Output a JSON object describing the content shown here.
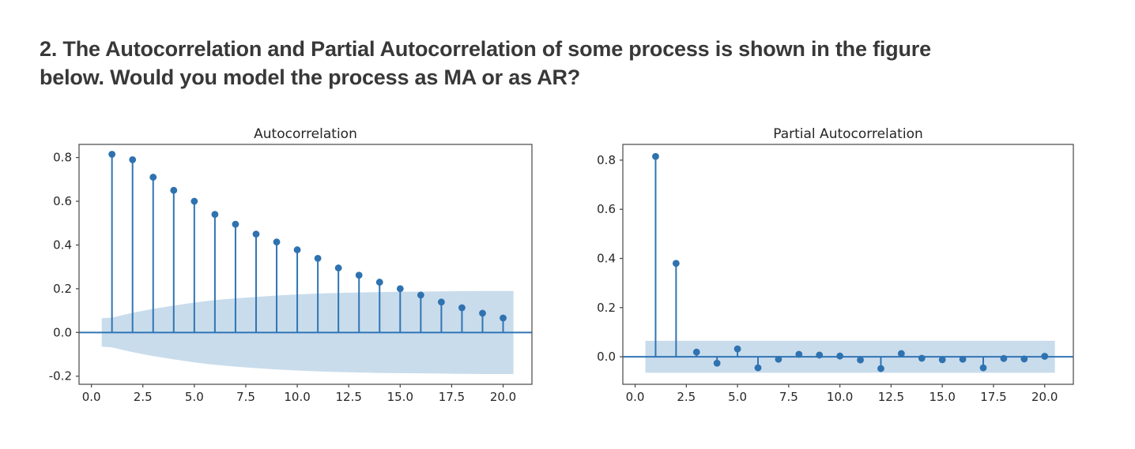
{
  "heading": {
    "lines": [
      "2. The Autocorrelation and Partial Autocorrelation of some process is shown in the figure",
      "below. Would you model the process as MA or as AR?"
    ]
  },
  "colors": {
    "stem": "#3075b4",
    "marker": "#2f72b0",
    "zero_line": "#3075b4",
    "band": "#c9dcec",
    "spine": "#555555",
    "tick": "#3f3f3f",
    "text": "#262626",
    "heading": "#383838"
  },
  "chart_data": [
    {
      "type": "stem",
      "title": "Autocorrelation",
      "xlabel": "",
      "ylabel": "",
      "legend": "none",
      "grid": false,
      "x": [
        1,
        2,
        3,
        4,
        5,
        6,
        7,
        8,
        9,
        10,
        11,
        12,
        13,
        14,
        15,
        16,
        17,
        18,
        19,
        20
      ],
      "values": [
        0.815,
        0.79,
        0.71,
        0.65,
        0.6,
        0.54,
        0.495,
        0.45,
        0.414,
        0.378,
        0.339,
        0.295,
        0.262,
        0.23,
        0.2,
        0.171,
        0.139,
        0.113,
        0.088,
        0.066
      ],
      "conf_band": {
        "symmetric_about_zero": true,
        "x": [
          0.5,
          1,
          2,
          3,
          4,
          5,
          6,
          7,
          8,
          9,
          10,
          11,
          12,
          13,
          14,
          15,
          16,
          17,
          18,
          19,
          20,
          20.5
        ],
        "upper": [
          0.065,
          0.068,
          0.09,
          0.108,
          0.123,
          0.137,
          0.148,
          0.156,
          0.163,
          0.169,
          0.174,
          0.178,
          0.181,
          0.183,
          0.185,
          0.186,
          0.187,
          0.188,
          0.189,
          0.19,
          0.19,
          0.19
        ]
      },
      "xlim": [
        -0.6,
        21.4
      ],
      "ylim": [
        -0.237,
        0.86
      ],
      "xticks": [
        0,
        2.5,
        5,
        7.5,
        10,
        12.5,
        15,
        17.5,
        20
      ],
      "xtick_labels": [
        "0.0",
        "2.5",
        "5.0",
        "7.5",
        "10.0",
        "12.5",
        "15.0",
        "17.5",
        "20.0"
      ],
      "yticks": [
        -0.2,
        0,
        0.2,
        0.4,
        0.6,
        0.8
      ],
      "ytick_labels": [
        "-0.2",
        "0.0",
        "0.2",
        "0.4",
        "0.6",
        "0.8"
      ]
    },
    {
      "type": "stem",
      "title": "Partial Autocorrelation",
      "xlabel": "",
      "ylabel": "",
      "legend": "none",
      "grid": false,
      "x": [
        1,
        2,
        3,
        4,
        5,
        6,
        7,
        8,
        9,
        10,
        11,
        12,
        13,
        14,
        15,
        16,
        17,
        18,
        19,
        20
      ],
      "values": [
        0.815,
        0.38,
        0.019,
        -0.026,
        0.032,
        -0.045,
        -0.01,
        0.01,
        0.007,
        0.003,
        -0.013,
        -0.048,
        0.013,
        -0.006,
        -0.012,
        -0.01,
        -0.045,
        -0.007,
        -0.009,
        0.002
      ],
      "conf_band": {
        "symmetric_about_zero": true,
        "x": [
          0.5,
          20.5
        ],
        "upper": [
          0.065,
          0.065
        ]
      },
      "xlim": [
        -0.6,
        21.4
      ],
      "ylim": [
        -0.112,
        0.864
      ],
      "xticks": [
        0,
        2.5,
        5,
        7.5,
        10,
        12.5,
        15,
        17.5,
        20
      ],
      "xtick_labels": [
        "0.0",
        "2.5",
        "5.0",
        "7.5",
        "10.0",
        "12.5",
        "15.0",
        "17.5",
        "20.0"
      ],
      "yticks": [
        0,
        0.2,
        0.4,
        0.6,
        0.8
      ],
      "ytick_labels": [
        "0.0",
        "0.2",
        "0.4",
        "0.6",
        "0.8"
      ]
    }
  ]
}
